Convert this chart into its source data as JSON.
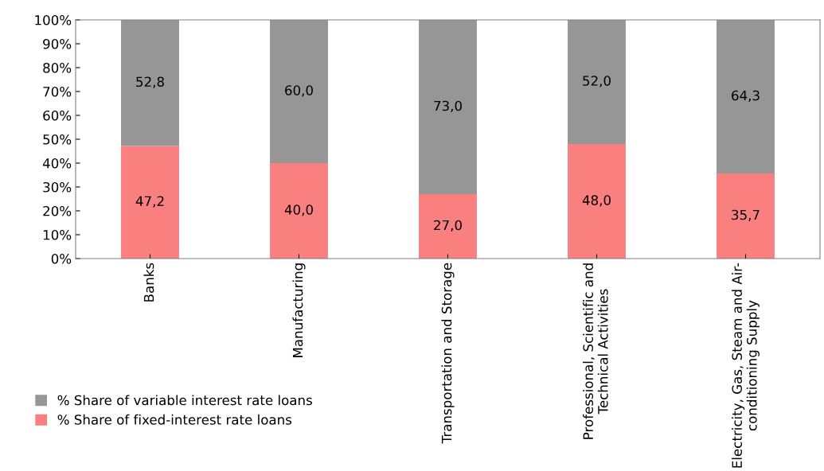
{
  "chart_data": {
    "type": "bar",
    "stacked": true,
    "categories": [
      "Banks",
      "Manufacturing",
      "Transportation and Storage",
      "Professional, Scientific and\nTechnical Activities",
      "Electricity, Gas, Steam and Air-\nconditioning Supply"
    ],
    "series": [
      {
        "name": "% Share of fixed-interest rate loans",
        "color": "#fa7f7f",
        "values": [
          47.2,
          40.0,
          27.0,
          48.0,
          35.7
        ],
        "value_labels": [
          "47,2",
          "40,0",
          "27,0",
          "48,0",
          "35,7"
        ]
      },
      {
        "name": "% Share of variable interest rate loans",
        "color": "#969696",
        "values": [
          52.8,
          60.0,
          73.0,
          52.0,
          64.3
        ],
        "value_labels": [
          "52,8",
          "60,0",
          "73,0",
          "52,0",
          "64,3"
        ]
      }
    ],
    "ylim": [
      0,
      100
    ],
    "yticks": [
      {
        "value": 0,
        "label": "0%"
      },
      {
        "value": 10,
        "label": "10%"
      },
      {
        "value": 20,
        "label": "20%"
      },
      {
        "value": 30,
        "label": "30%"
      },
      {
        "value": 40,
        "label": "40%"
      },
      {
        "value": 50,
        "label": "50%"
      },
      {
        "value": 60,
        "label": "60%"
      },
      {
        "value": 70,
        "label": "70%"
      },
      {
        "value": 80,
        "label": "80%"
      },
      {
        "value": 90,
        "label": "90%"
      },
      {
        "value": 100,
        "label": "100%"
      }
    ],
    "grid": false,
    "legend": "bottom left"
  }
}
